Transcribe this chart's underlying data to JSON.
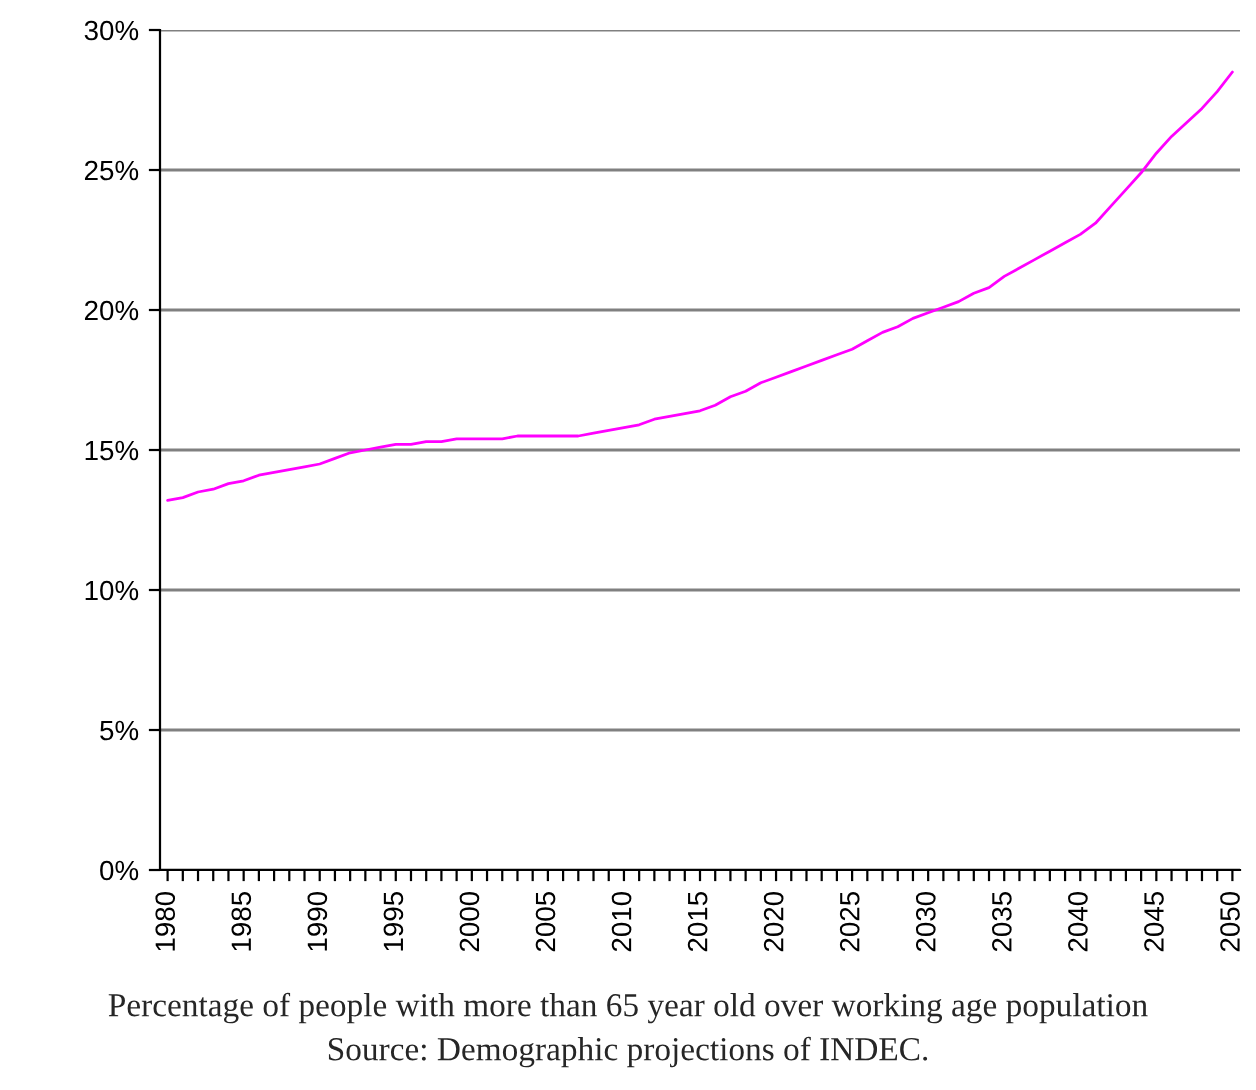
{
  "chart_data": {
    "type": "line",
    "categories": [
      "1980",
      null,
      null,
      null,
      null,
      "1985",
      null,
      null,
      null,
      null,
      "1990",
      null,
      null,
      null,
      null,
      "1995",
      null,
      null,
      null,
      null,
      "2000",
      null,
      null,
      null,
      null,
      "2005",
      null,
      null,
      null,
      null,
      "2010",
      null,
      null,
      null,
      null,
      "2015",
      null,
      null,
      null,
      null,
      "2020",
      null,
      null,
      null,
      null,
      "2025",
      null,
      null,
      null,
      null,
      "2030",
      null,
      null,
      null,
      null,
      "2035",
      null,
      null,
      null,
      null,
      "2040",
      null,
      null,
      null,
      null,
      "2045",
      null,
      null,
      null,
      null,
      "2050"
    ],
    "series": [
      {
        "color": "#ff00ff",
        "values": [
          13.2,
          13.3,
          13.5,
          13.6,
          13.8,
          13.9,
          14.1,
          14.2,
          14.3,
          14.4,
          14.5,
          14.7,
          14.9,
          15.0,
          15.1,
          15.2,
          15.2,
          15.3,
          15.3,
          15.4,
          15.4,
          15.4,
          15.4,
          15.5,
          15.5,
          15.5,
          15.5,
          15.5,
          15.6,
          15.7,
          15.8,
          15.9,
          16.1,
          16.2,
          16.3,
          16.4,
          16.6,
          16.9,
          17.1,
          17.4,
          17.6,
          17.8,
          18.0,
          18.2,
          18.4,
          18.6,
          18.9,
          19.2,
          19.4,
          19.7,
          19.9,
          20.1,
          20.3,
          20.6,
          20.8,
          21.2,
          21.5,
          21.8,
          22.1,
          22.4,
          22.7,
          23.1,
          23.7,
          24.3,
          24.9,
          25.6,
          26.2,
          26.7,
          27.2,
          27.8,
          28.5
        ]
      }
    ],
    "ylim": [
      0,
      30
    ],
    "yticks": [
      {
        "value": 0,
        "label": "0%"
      },
      {
        "value": 5,
        "label": "5%"
      },
      {
        "value": 10,
        "label": "10%"
      },
      {
        "value": 15,
        "label": "15%"
      },
      {
        "value": 20,
        "label": "20%"
      },
      {
        "value": 25,
        "label": "25%"
      },
      {
        "value": 30,
        "label": "30%"
      }
    ],
    "grid": "y",
    "legend": false,
    "annotations": [
      "Percentage of people with more than 65 year old over working age population",
      "Source: Demographic projections of INDEC."
    ]
  }
}
